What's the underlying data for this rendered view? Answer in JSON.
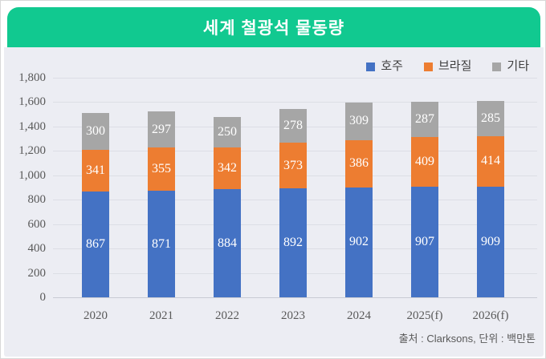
{
  "banner": {
    "title": "세계 철광석 물동량",
    "bg_color": "#11c990"
  },
  "legend": {
    "items": [
      {
        "label": "호주",
        "color": "#4472c4"
      },
      {
        "label": "브라질",
        "color": "#ed7d31"
      },
      {
        "label": "기타",
        "color": "#a6a6a6"
      }
    ]
  },
  "footer": {
    "text": "출처 : Clarksons, 단위 : 백만톤"
  },
  "colors": {
    "panel_bg": "#ecedf3",
    "gridline": "#dcdee5",
    "australia_blue": "#4472c4",
    "brazil_orange": "#ed7d31",
    "others_gray": "#a6a6a6",
    "banner_green": "#11c990"
  },
  "chart_data": {
    "type": "bar",
    "stacked": true,
    "title": "세계 철광석 물동량",
    "categories": [
      "2020",
      "2021",
      "2022",
      "2023",
      "2024",
      "2025(f)",
      "2026(f)"
    ],
    "series": [
      {
        "name": "호주",
        "color": "#4472c4",
        "values": [
          867,
          871,
          884,
          892,
          902,
          907,
          909
        ]
      },
      {
        "name": "브라질",
        "color": "#ed7d31",
        "values": [
          341,
          355,
          342,
          373,
          386,
          409,
          414
        ]
      },
      {
        "name": "기타",
        "color": "#a6a6a6",
        "values": [
          300,
          297,
          250,
          278,
          309,
          287,
          285
        ]
      }
    ],
    "totals": [
      1508,
      1523,
      1476,
      1543,
      1597,
      1603,
      1608
    ],
    "xlabel": "",
    "ylabel": "",
    "ylim": [
      0,
      1800
    ],
    "ytick_values": [
      0,
      200,
      400,
      600,
      800,
      1000,
      1200,
      1400,
      1600,
      1800
    ],
    "ytick_labels": [
      "0",
      "200",
      "400",
      "600",
      "800",
      "1,000",
      "1,200",
      "1,400",
      "1,600",
      "1,800"
    ],
    "grid": true,
    "legend_position": "top-right",
    "data_labels": "inside-center",
    "source_note": "출처 : Clarksons, 단위 : 백만톤"
  }
}
